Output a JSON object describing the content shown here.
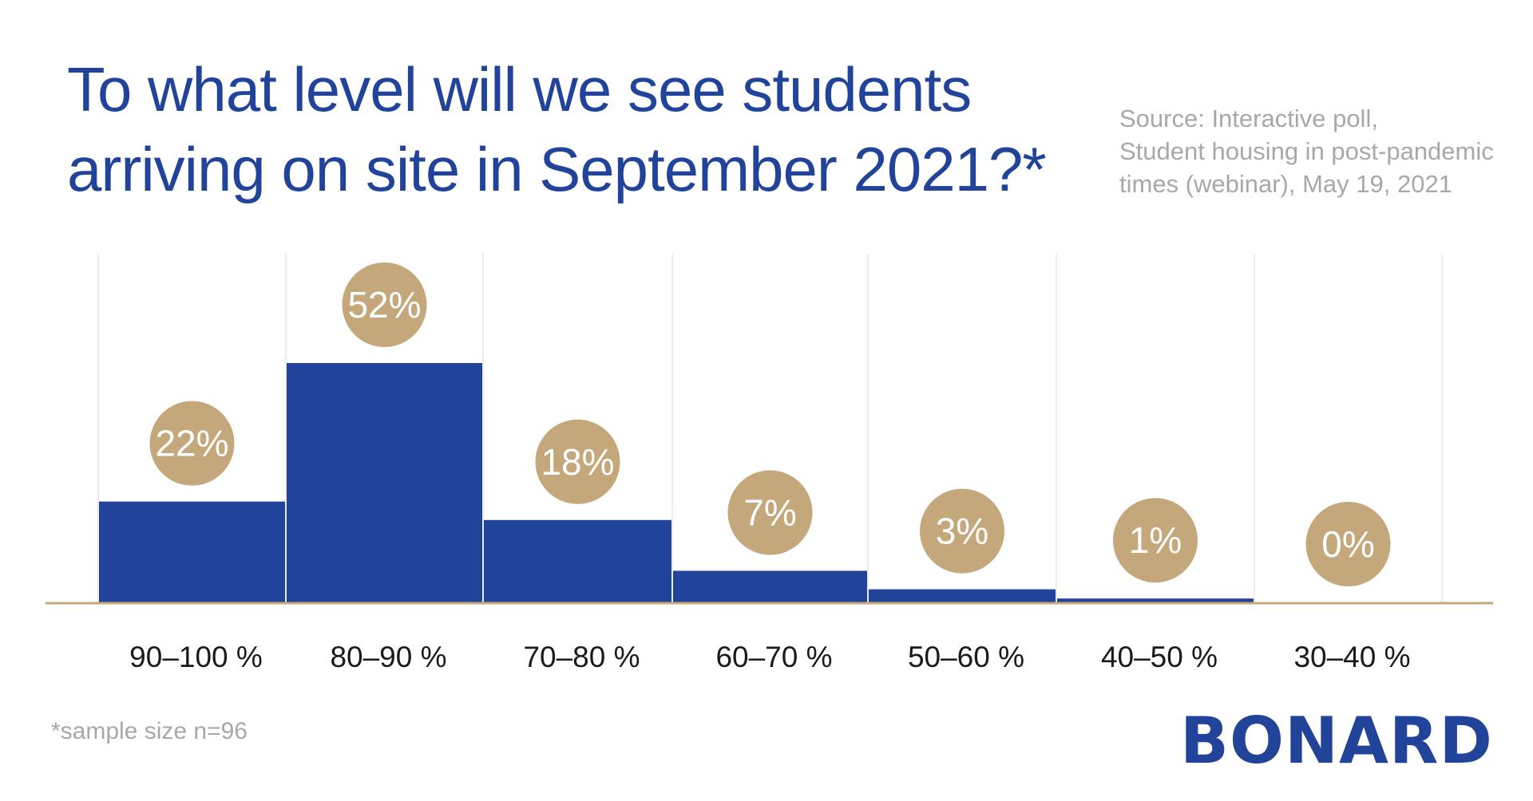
{
  "title": {
    "line1": "To what level will we see students",
    "line2": "arriving on site in September 2021?*"
  },
  "source": {
    "line1": "Source: Interactive poll,",
    "line2": "Student housing in post-pandemic",
    "line3": "times (webinar), May 19, 2021"
  },
  "footnote": "*sample size n=96",
  "logo": "BONARD",
  "colors": {
    "bar": "#21449a",
    "bubble": "#c4a87b",
    "baseline": "#c4a87b",
    "gridline": "#e6e6e6",
    "title": "#21449a",
    "muted_text": "#a8a8a8"
  },
  "chart_data": {
    "type": "bar",
    "categories": [
      "90–100 %",
      "80–90 %",
      "70–80 %",
      "60–70 %",
      "50–60 %",
      "40–50 %",
      "30–40 %"
    ],
    "values": [
      22,
      52,
      18,
      7,
      3,
      1,
      0
    ],
    "data_labels": [
      "22%",
      "52%",
      "18%",
      "7%",
      "3%",
      "1%",
      "0%"
    ],
    "ylim": [
      0,
      52
    ],
    "grid": "vertical",
    "legend": "none"
  }
}
